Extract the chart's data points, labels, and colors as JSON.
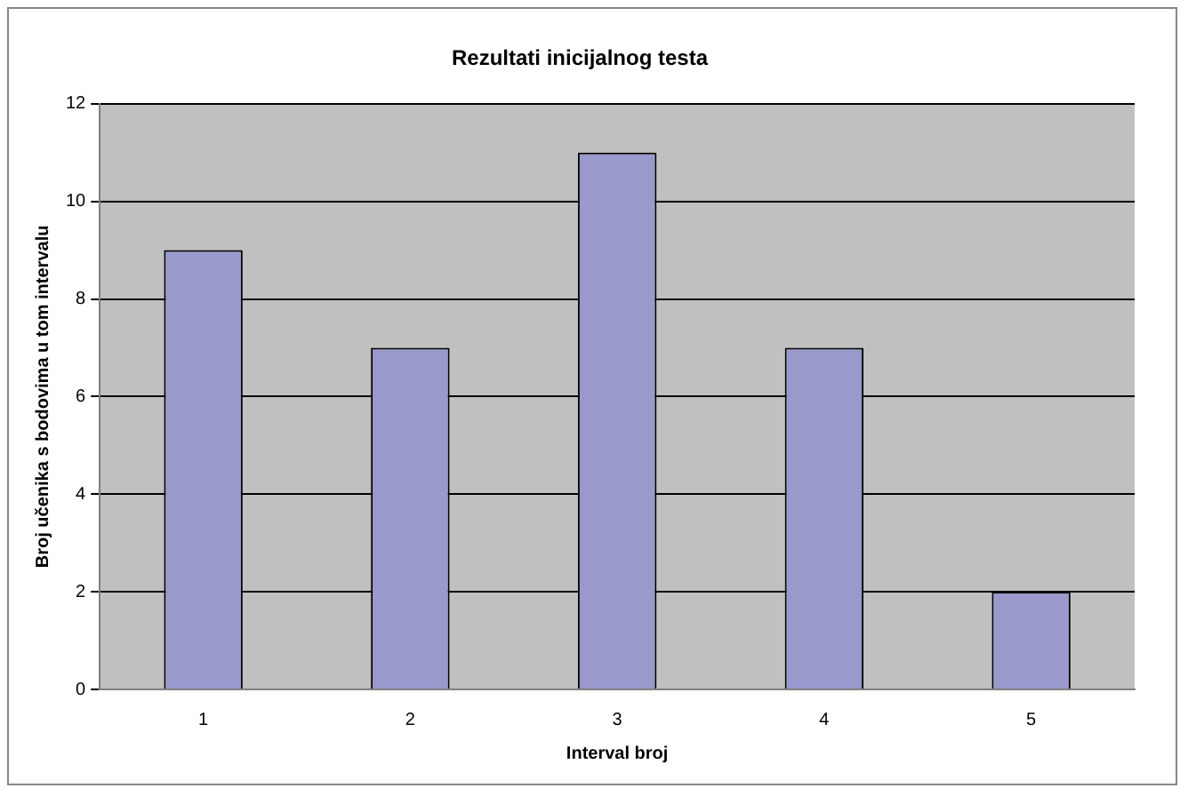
{
  "chart_data": {
    "type": "bar",
    "title": "Rezultati inicijalnog testa",
    "xlabel": "Interval broj",
    "ylabel": "Broj učenika s bodovima u tom intervalu",
    "categories": [
      "1",
      "2",
      "3",
      "4",
      "5"
    ],
    "values": [
      9,
      7,
      11,
      7,
      2
    ],
    "color": "#9999cc",
    "ylim": [
      0,
      12
    ],
    "yticks": [
      0,
      2,
      4,
      6,
      8,
      10,
      12
    ],
    "grid": "y",
    "legend": false
  }
}
